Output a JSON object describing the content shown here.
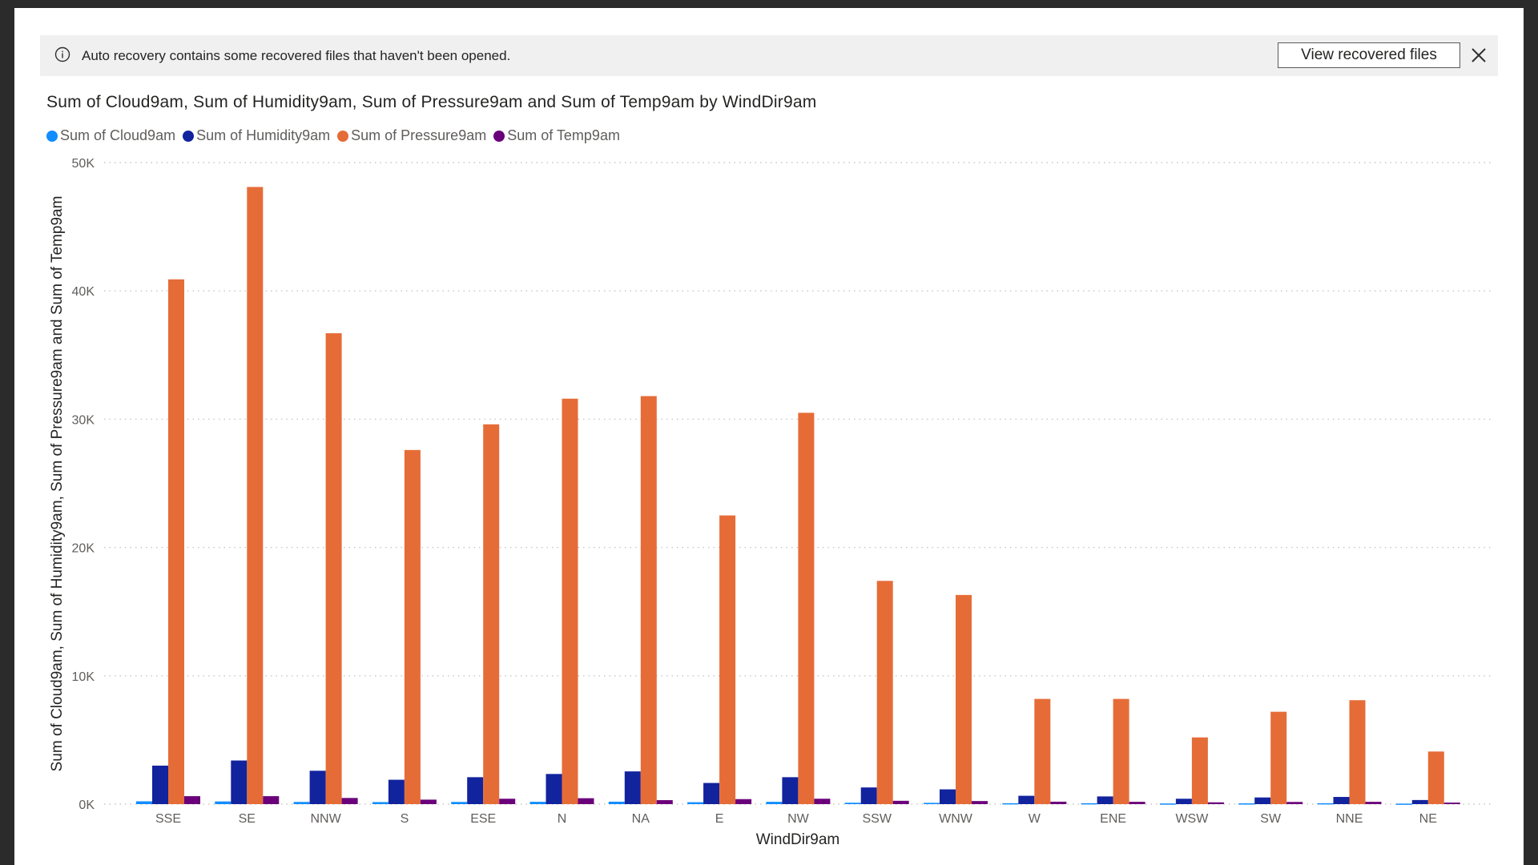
{
  "banner": {
    "message": "Auto recovery contains some recovered files that haven't been opened.",
    "button_label": "View recovered files",
    "info_icon": "info-icon",
    "close_icon": "close-icon"
  },
  "chart_data": {
    "type": "bar",
    "title": "Sum of Cloud9am, Sum of Humidity9am, Sum of Pressure9am and Sum of Temp9am by WindDir9am",
    "xlabel": "WindDir9am",
    "ylabel": "Sum of Cloud9am, Sum of Humidity9am, Sum of Pressure9am and Sum of Temp9am",
    "ylim": [
      0,
      50000
    ],
    "yticks": [
      {
        "value": 0,
        "label": "0K"
      },
      {
        "value": 10000,
        "label": "10K"
      },
      {
        "value": 20000,
        "label": "20K"
      },
      {
        "value": 30000,
        "label": "30K"
      },
      {
        "value": 40000,
        "label": "40K"
      },
      {
        "value": 50000,
        "label": "50K"
      }
    ],
    "grid": true,
    "legend_position": "top-left",
    "categories": [
      "SSE",
      "SE",
      "NNW",
      "S",
      "ESE",
      "N",
      "NA",
      "E",
      "NW",
      "SSW",
      "WNW",
      "W",
      "ENE",
      "WSW",
      "SW",
      "NNE",
      "NE"
    ],
    "series": [
      {
        "name": "Sum of Cloud9am",
        "color": "#118DFF",
        "values": [
          220,
          210,
          170,
          160,
          170,
          180,
          190,
          150,
          180,
          110,
          100,
          70,
          70,
          50,
          60,
          70,
          40
        ]
      },
      {
        "name": "Sum of Humidity9am",
        "color": "#12239E",
        "values": [
          3000,
          3400,
          2600,
          1900,
          2100,
          2350,
          2550,
          1650,
          2100,
          1300,
          1150,
          650,
          600,
          420,
          520,
          560,
          320
        ]
      },
      {
        "name": "Sum of Pressure9am",
        "color": "#E66C37",
        "values": [
          40900,
          48100,
          36700,
          27600,
          29600,
          31600,
          31800,
          22500,
          30500,
          17400,
          16300,
          8200,
          8200,
          5200,
          7200,
          8100,
          4100
        ]
      },
      {
        "name": "Sum of Temp9am",
        "color": "#6B007B",
        "values": [
          620,
          620,
          480,
          350,
          420,
          460,
          310,
          390,
          420,
          260,
          240,
          190,
          180,
          140,
          170,
          180,
          120
        ]
      }
    ]
  }
}
